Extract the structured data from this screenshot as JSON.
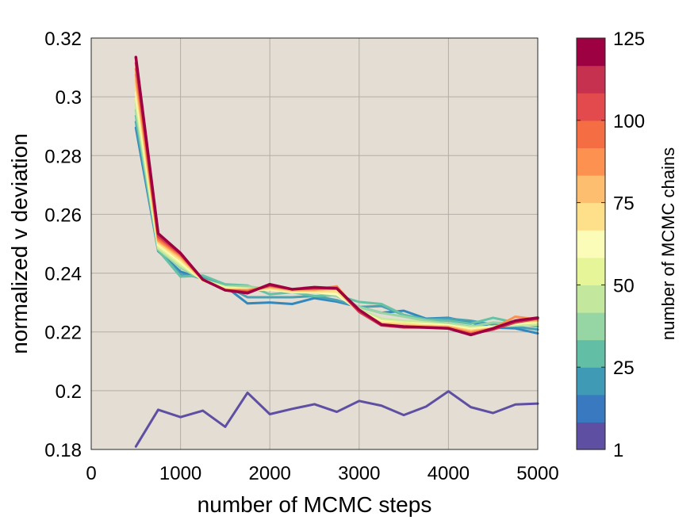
{
  "chart_data": {
    "type": "line",
    "xlabel": "number of MCMC steps",
    "ylabel": "normalized v deviation",
    "xlim": [
      0,
      5000
    ],
    "ylim": [
      0.18,
      0.32
    ],
    "xticks": [
      "0",
      "1000",
      "2000",
      "3000",
      "4000",
      "5000"
    ],
    "yticks": [
      "0.18",
      "0.2",
      "0.22",
      "0.24",
      "0.26",
      "0.28",
      "0.3",
      "0.32"
    ],
    "grid": true,
    "plot_background": "#e3ddd3",
    "x": [
      500,
      750,
      1000,
      1250,
      1500,
      1750,
      2000,
      2250,
      2500,
      2750,
      3000,
      3250,
      3500,
      3750,
      4000,
      4250,
      4500,
      4750,
      5000
    ],
    "series": [
      {
        "chains": 1,
        "color": "#5e4fa2",
        "values": [
          0.181,
          0.1935,
          0.191,
          0.1932,
          0.1877,
          0.1993,
          0.192,
          0.1938,
          0.1954,
          0.1928,
          0.1965,
          0.1949,
          0.1917,
          0.1946,
          0.1998,
          0.1944,
          0.1924,
          0.1953,
          0.1956
        ]
      },
      {
        "chains": 10,
        "color": "#3288bd",
        "values": [
          0.2895,
          0.2475,
          0.2405,
          0.238,
          0.2355,
          0.2297,
          0.23,
          0.2295,
          0.2315,
          0.2303,
          0.2285,
          0.2265,
          0.2272,
          0.2245,
          0.2248,
          0.2232,
          0.2215,
          0.2212,
          0.2195
        ]
      },
      {
        "chains": 15,
        "color": "#4ba0b1",
        "values": [
          0.2915,
          0.2478,
          0.2395,
          0.2385,
          0.2358,
          0.2318,
          0.2318,
          0.2318,
          0.2322,
          0.2308,
          0.2285,
          0.2288,
          0.2258,
          0.2242,
          0.2245,
          0.2238,
          0.2225,
          0.2218,
          0.2208
        ]
      },
      {
        "chains": 25,
        "color": "#66c2a5",
        "values": [
          0.2935,
          0.2478,
          0.2388,
          0.2392,
          0.2362,
          0.2358,
          0.2328,
          0.2335,
          0.2322,
          0.2325,
          0.2302,
          0.2295,
          0.2258,
          0.2242,
          0.2238,
          0.2228,
          0.2248,
          0.2232,
          0.2218
        ]
      },
      {
        "chains": 35,
        "color": "#99d5a4",
        "values": [
          0.2955,
          0.2482,
          0.2418,
          0.2378,
          0.2355,
          0.2355,
          0.2345,
          0.2335,
          0.2335,
          0.2322,
          0.2285,
          0.2265,
          0.2252,
          0.2238,
          0.2228,
          0.2218,
          0.2232,
          0.2228,
          0.2225
        ]
      },
      {
        "chains": 45,
        "color": "#c7e89e",
        "values": [
          0.2975,
          0.2485,
          0.2425,
          0.2378,
          0.2352,
          0.2348,
          0.2345,
          0.2338,
          0.2335,
          0.2335,
          0.2278,
          0.2245,
          0.2238,
          0.2232,
          0.2225,
          0.2215,
          0.2218,
          0.2222,
          0.2225
        ]
      },
      {
        "chains": 55,
        "color": "#e6f598",
        "values": [
          0.2995,
          0.2492,
          0.2432,
          0.2375,
          0.2352,
          0.2345,
          0.2345,
          0.2338,
          0.2338,
          0.2332,
          0.2272,
          0.2238,
          0.2232,
          0.2228,
          0.2222,
          0.2212,
          0.2218,
          0.2228,
          0.2232
        ]
      },
      {
        "chains": 65,
        "color": "#fffbb8",
        "values": [
          0.3015,
          0.2498,
          0.2438,
          0.2375,
          0.2348,
          0.2342,
          0.2345,
          0.2335,
          0.2335,
          0.2328,
          0.2272,
          0.2235,
          0.2228,
          0.2225,
          0.2222,
          0.2208,
          0.2215,
          0.2228,
          0.2235
        ]
      },
      {
        "chains": 75,
        "color": "#fee08b",
        "values": [
          0.3035,
          0.2502,
          0.2445,
          0.2375,
          0.2345,
          0.2342,
          0.2348,
          0.2338,
          0.2338,
          0.2338,
          0.2268,
          0.2232,
          0.2228,
          0.2222,
          0.2218,
          0.2205,
          0.2212,
          0.2232,
          0.2238
        ]
      },
      {
        "chains": 85,
        "color": "#fdbf6f",
        "values": [
          0.3055,
          0.2508,
          0.2452,
          0.2378,
          0.2345,
          0.2342,
          0.2352,
          0.2342,
          0.2342,
          0.2348,
          0.2268,
          0.2228,
          0.2222,
          0.2218,
          0.2218,
          0.2202,
          0.2212,
          0.2238,
          0.2238
        ]
      },
      {
        "chains": 95,
        "color": "#fc9150",
        "values": [
          0.3075,
          0.2512,
          0.2458,
          0.2378,
          0.2342,
          0.2342,
          0.2355,
          0.2345,
          0.2345,
          0.2355,
          0.2268,
          0.2225,
          0.2218,
          0.2218,
          0.2215,
          0.2198,
          0.2212,
          0.2252,
          0.2242
        ]
      },
      {
        "chains": 105,
        "color": "#f46d43",
        "values": [
          0.3095,
          0.2518,
          0.2462,
          0.2378,
          0.2342,
          0.2338,
          0.2358,
          0.2345,
          0.2348,
          0.2352,
          0.2268,
          0.2222,
          0.2218,
          0.2215,
          0.2212,
          0.2195,
          0.2208,
          0.2235,
          0.2245
        ]
      },
      {
        "chains": 115,
        "color": "#d53e4f",
        "values": [
          0.3115,
          0.2525,
          0.2465,
          0.2378,
          0.2342,
          0.2335,
          0.2358,
          0.2345,
          0.2348,
          0.2348,
          0.2268,
          0.2222,
          0.2215,
          0.2215,
          0.2212,
          0.2192,
          0.2208,
          0.2232,
          0.2245
        ]
      },
      {
        "chains": 125,
        "color": "#9e0142",
        "values": [
          0.3135,
          0.2535,
          0.2468,
          0.2378,
          0.2342,
          0.2332,
          0.2362,
          0.2345,
          0.2352,
          0.2348,
          0.2275,
          0.2225,
          0.2218,
          0.2215,
          0.2212,
          0.219,
          0.2212,
          0.2238,
          0.2248
        ]
      }
    ],
    "colorbar": {
      "label": "number of MCMC chains",
      "ticks": [
        "1",
        "25",
        "50",
        "75",
        "100",
        "125"
      ],
      "colors": [
        "#5e4fa2",
        "#3879bf",
        "#3f9bb5",
        "#62bfa5",
        "#96d5a4",
        "#c4e79e",
        "#e6f598",
        "#fbfcb8",
        "#fee08b",
        "#fdbf6f",
        "#fc9150",
        "#f46d43",
        "#e24a4e",
        "#c73150",
        "#9e0142"
      ]
    }
  }
}
